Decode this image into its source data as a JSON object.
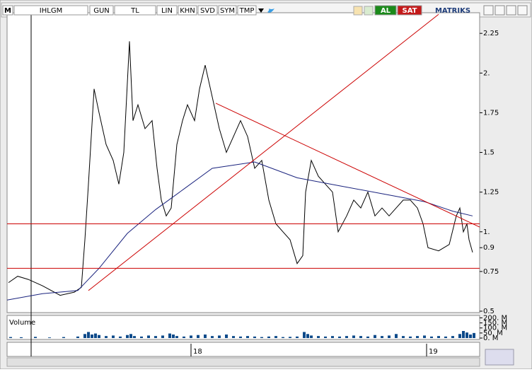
{
  "toolbar": {
    "logo": "M",
    "symbol": "IHLGM",
    "buttons": [
      "GUN",
      "TL",
      "LIN",
      "KHN",
      "SVD",
      "SYM",
      "TMP"
    ],
    "buy": "AL",
    "sell": "SAT",
    "brand": "MATRIKS"
  },
  "chart_data": [
    {
      "type": "line",
      "xlim": [
        0,
        668
      ],
      "xticks": [
        {
          "value": 260,
          "label": "18"
        },
        {
          "value": 593,
          "label": "19"
        }
      ],
      "ylim": [
        0.5,
        2.38
      ],
      "yticks": [
        0.5,
        0.75,
        0.9,
        {
          "value": 1,
          "label": "1."
        },
        1.25,
        1.5,
        1.75,
        {
          "value": 2,
          "label": "2."
        },
        2.25
      ],
      "series": [
        {
          "color": "#000000",
          "x": [
            2,
            15,
            30,
            50,
            75,
            95,
            105,
            110,
            115,
            123,
            130,
            140,
            150,
            158,
            165,
            173,
            178,
            185,
            195,
            205,
            212,
            218,
            225,
            232,
            240,
            248,
            255,
            265,
            272,
            280,
            290,
            300,
            310,
            320,
            330,
            340,
            350,
            360,
            370,
            380,
            390,
            400,
            410,
            418,
            422,
            430,
            440,
            450,
            460,
            468,
            480,
            490,
            500,
            510,
            520,
            530,
            540,
            550,
            560,
            570,
            580,
            588,
            595,
            610,
            625,
            635,
            640,
            645,
            650,
            653,
            658
          ],
          "values": [
            0.68,
            0.72,
            0.7,
            0.66,
            0.6,
            0.62,
            0.65,
            0.95,
            1.3,
            1.9,
            1.75,
            1.55,
            1.45,
            1.3,
            1.5,
            2.2,
            1.7,
            1.8,
            1.65,
            1.7,
            1.4,
            1.2,
            1.1,
            1.15,
            1.55,
            1.7,
            1.8,
            1.7,
            1.9,
            2.05,
            1.85,
            1.65,
            1.5,
            1.6,
            1.7,
            1.6,
            1.4,
            1.45,
            1.2,
            1.05,
            1.0,
            0.95,
            0.8,
            0.85,
            1.25,
            1.45,
            1.35,
            1.3,
            1.25,
            1.0,
            1.1,
            1.2,
            1.15,
            1.25,
            1.1,
            1.15,
            1.1,
            1.15,
            1.2,
            1.2,
            1.15,
            1.05,
            0.9,
            0.88,
            0.92,
            1.1,
            1.15,
            1.0,
            1.05,
            0.95,
            0.87
          ]
        },
        {
          "color": "#1a237e",
          "x": [
            0,
            50,
            100,
            130,
            170,
            210,
            250,
            290,
            350,
            410,
            470,
            530,
            590,
            630,
            658
          ],
          "values": [
            0.57,
            0.61,
            0.63,
            0.77,
            0.99,
            1.14,
            1.27,
            1.4,
            1.44,
            1.34,
            1.29,
            1.24,
            1.19,
            1.13,
            1.1
          ]
        }
      ],
      "hlines": [
        {
          "value": 1.05,
          "color": "#cc0000"
        },
        {
          "value": 0.77,
          "color": "#cc0000"
        }
      ],
      "trendlines": [
        {
          "x": [
            115,
            610
          ],
          "y": [
            0.63,
            2.37
          ],
          "color": "#cc0000"
        },
        {
          "x": [
            295,
            668
          ],
          "y": [
            1.81,
            1.03
          ],
          "color": "#cc0000"
        }
      ]
    },
    {
      "type": "bar",
      "title": "Volume",
      "color": "#0d4a8a",
      "xlim": [
        0,
        668
      ],
      "ylim": [
        0,
        210
      ],
      "yticks": [
        {
          "value": 0,
          "label": "0. M"
        },
        {
          "value": 50,
          "label": "50. M"
        },
        {
          "value": 100,
          "label": "100. M"
        },
        {
          "value": 150,
          "label": "150. M"
        },
        {
          "value": 200,
          "label": "200. M"
        }
      ],
      "x": [
        5,
        20,
        40,
        60,
        80,
        100,
        110,
        115,
        120,
        125,
        130,
        140,
        150,
        160,
        170,
        175,
        180,
        190,
        200,
        210,
        220,
        230,
        235,
        240,
        250,
        260,
        270,
        280,
        290,
        300,
        310,
        320,
        330,
        340,
        350,
        360,
        370,
        380,
        390,
        400,
        410,
        420,
        425,
        430,
        440,
        450,
        460,
        470,
        480,
        490,
        500,
        510,
        520,
        530,
        540,
        550,
        560,
        570,
        580,
        590,
        600,
        610,
        620,
        630,
        640,
        645,
        650,
        655,
        660
      ],
      "values": [
        10,
        8,
        12,
        6,
        10,
        15,
        40,
        60,
        35,
        45,
        30,
        20,
        25,
        15,
        30,
        40,
        20,
        15,
        25,
        20,
        25,
        45,
        35,
        20,
        15,
        25,
        30,
        35,
        20,
        25,
        35,
        20,
        15,
        20,
        15,
        10,
        15,
        20,
        10,
        12,
        15,
        60,
        40,
        25,
        20,
        15,
        20,
        15,
        20,
        25,
        20,
        15,
        30,
        20,
        25,
        40,
        20,
        15,
        20,
        25,
        15,
        20,
        15,
        20,
        40,
        70,
        55,
        35,
        50
      ]
    }
  ]
}
